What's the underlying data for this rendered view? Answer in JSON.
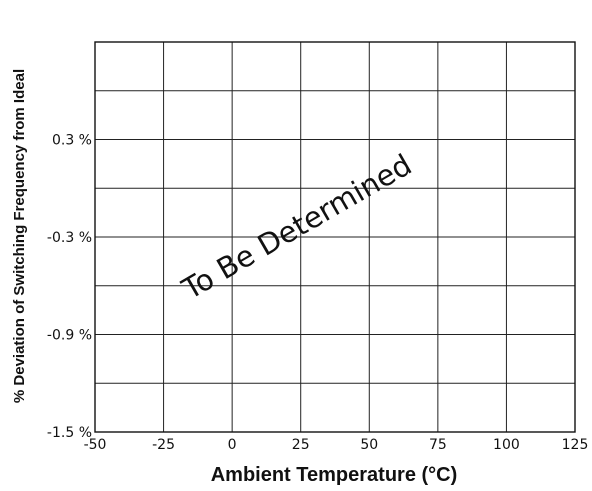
{
  "chart_data": {
    "type": "line",
    "title": "",
    "xlabel": "Ambient Temperature (°C)",
    "ylabel": "% Deviation of Switching Frequency from Ideal",
    "xlim": [
      -50,
      125
    ],
    "ylim": [
      -1.5,
      0.9
    ],
    "x_ticks": [
      -50,
      -25,
      0,
      25,
      50,
      75,
      100,
      125
    ],
    "y_ticks": [
      {
        "value": 0.3,
        "label": "0.3 %"
      },
      {
        "value": -0.3,
        "label": "-0.3 %"
      },
      {
        "value": -0.9,
        "label": "-0.9 %"
      },
      {
        "value": -1.5,
        "label": "-1.5 %"
      }
    ],
    "grid": true,
    "series": [],
    "annotation": "To Be Determined"
  }
}
